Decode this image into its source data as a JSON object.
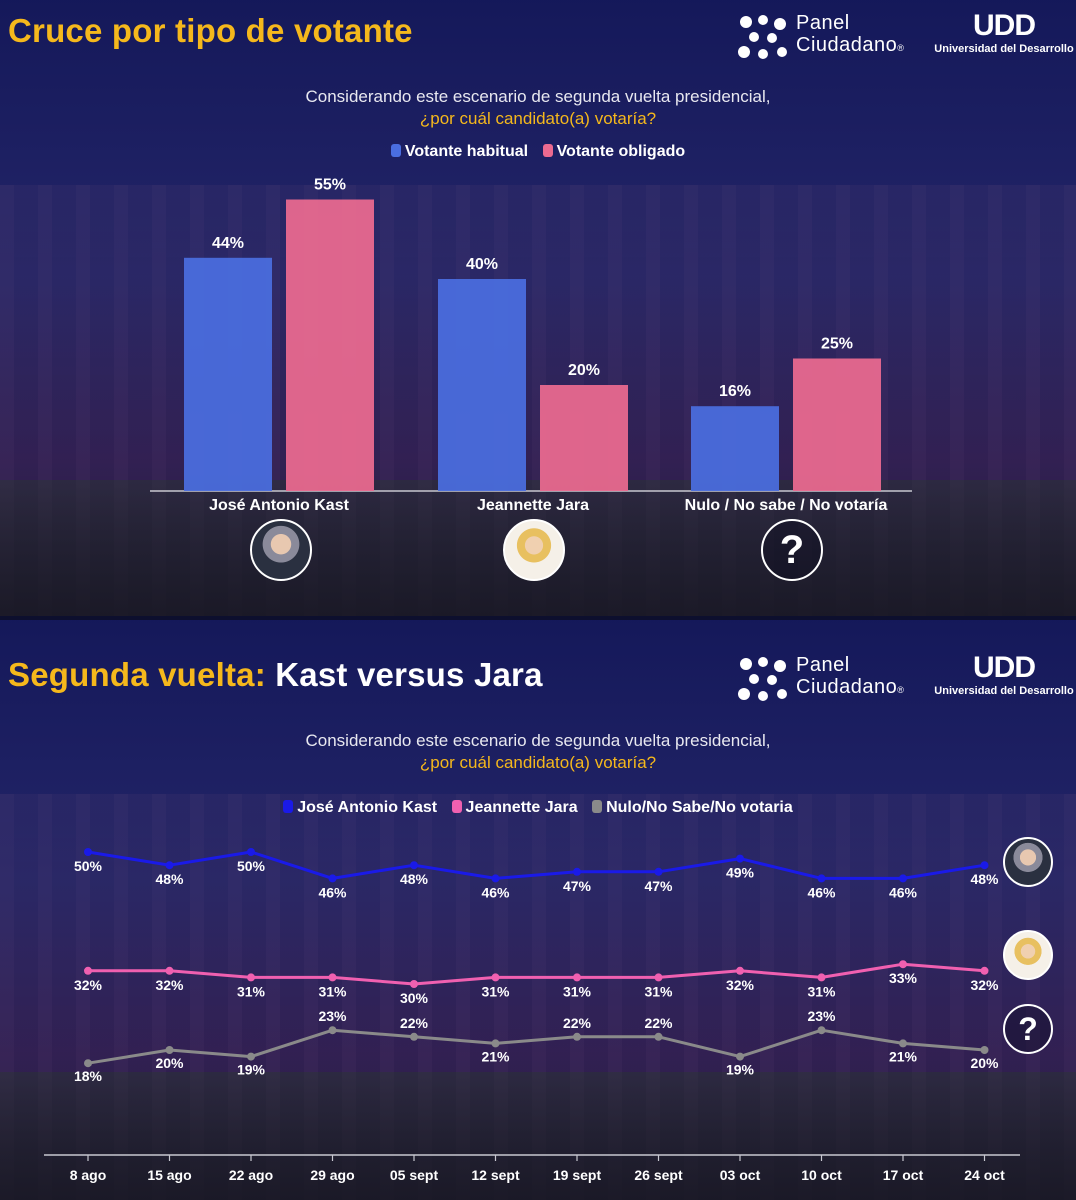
{
  "colors": {
    "title": "#f5b81c",
    "habitual": "#4a6ee0",
    "obligado": "#ec6a90",
    "kast_line": "#1a1ae8",
    "jara_line": "#f060b0",
    "nulo_line": "#8a8a8a"
  },
  "logo": {
    "brand_line1": "Panel",
    "brand_line2": "Ciudadano",
    "brand_reg": "®",
    "udd_mark": "UDD",
    "udd_sub": "Universidad del Desarrollo"
  },
  "panel1": {
    "title": "Cruce por tipo de votante",
    "question_line1": "Considerando este escenario de segunda vuelta presidencial,",
    "question_line2": "¿por cuál candidato(a) votaría?",
    "legend": [
      "Votante habitual",
      "Votante obligado"
    ]
  },
  "panel2": {
    "title_part1": "Segunda vuelta:",
    "title_part2": "Kast versus Jara",
    "question_line1": "Considerando este escenario de segunda vuelta presidencial,",
    "question_line2": "¿por cuál candidato(a) votaría?",
    "legend": [
      "José Antonio Kast",
      "Jeannette Jara",
      "Nulo/No Sabe/No votaria"
    ]
  },
  "avatars": {
    "question_mark": "?"
  },
  "chart_data": [
    {
      "type": "bar",
      "title": "Cruce por tipo de votante",
      "categories": [
        "José Antonio Kast",
        "Jeannette Jara",
        "Nulo / No sabe / No votaría"
      ],
      "series": [
        {
          "name": "Votante habitual",
          "values": [
            44,
            40,
            16
          ],
          "labels": [
            "44%",
            "40%",
            "16%"
          ]
        },
        {
          "name": "Votante obligado",
          "values": [
            55,
            20,
            25
          ],
          "labels": [
            "55%",
            "20%",
            "25%"
          ]
        }
      ],
      "ylim": [
        0,
        70
      ],
      "unit": "%"
    },
    {
      "type": "line",
      "title": "Segunda vuelta: Kast versus Jara",
      "categories": [
        "8 ago",
        "15 ago",
        "22 ago",
        "29 ago",
        "05 sept",
        "12 sept",
        "19 sept",
        "26 sept",
        "03 oct",
        "10 oct",
        "17 oct",
        "24 oct"
      ],
      "series": [
        {
          "name": "José Antonio Kast",
          "values": [
            50,
            48,
            50,
            46,
            48,
            46,
            47,
            47,
            49,
            46,
            46,
            48
          ],
          "labels": [
            "50%",
            "48%",
            "50%",
            "46%",
            "48%",
            "46%",
            "47%",
            "47%",
            "49%",
            "46%",
            "46%",
            "48%"
          ]
        },
        {
          "name": "Jeannette Jara",
          "values": [
            32,
            32,
            31,
            31,
            30,
            31,
            31,
            31,
            32,
            31,
            33,
            32
          ],
          "labels": [
            "32%",
            "32%",
            "31%",
            "31%",
            "30%",
            "31%",
            "31%",
            "31%",
            "32%",
            "31%",
            "33%",
            "32%"
          ]
        },
        {
          "name": "Nulo/No Sabe/No votaria",
          "values": [
            18,
            20,
            19,
            23,
            22,
            21,
            22,
            22,
            19,
            23,
            21,
            20
          ],
          "labels": [
            "18%",
            "20%",
            "19%",
            "23%",
            "22%",
            "21%",
            "22%",
            "22%",
            "19%",
            "23%",
            "21%",
            "20%"
          ]
        }
      ],
      "unit": "%"
    }
  ]
}
